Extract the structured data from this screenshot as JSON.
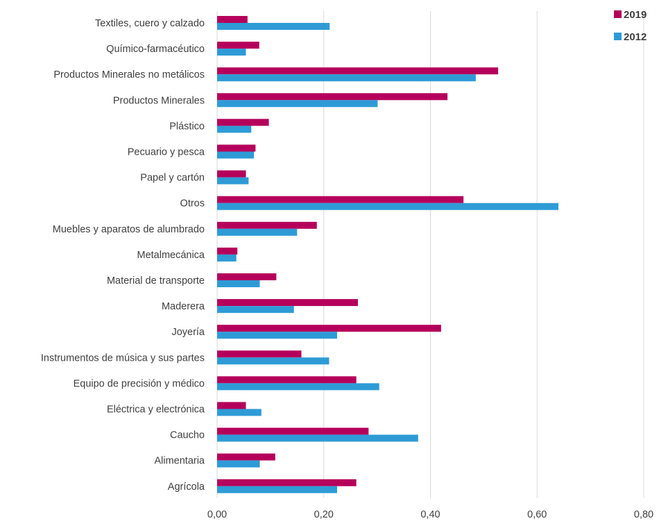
{
  "chart_data": {
    "type": "bar",
    "orientation": "horizontal",
    "title": "",
    "xlabel": "",
    "ylabel": "",
    "xlim": [
      0,
      0.8
    ],
    "x_ticks": [
      0,
      0.2,
      0.4,
      0.6,
      0.8
    ],
    "x_tick_labels": [
      "0,00",
      "0,20",
      "0,40",
      "0,60",
      "0,80"
    ],
    "grid": "vertical",
    "legend_position": "top-right",
    "categories": [
      "Textiles, cuero y calzado",
      "Químico-farmacéutico",
      "Productos Minerales no metálicos",
      "Productos Minerales",
      "Plástico",
      "Pecuario y pesca",
      "Papel y cartón",
      "Otros",
      "Muebles y aparatos de alumbrado",
      "Metalmecánica",
      "Material de transporte",
      "Maderera",
      "Joyería",
      "Instrumentos de música y sus partes",
      "Equipo de precisión y médico",
      "Eléctrica y electrónica",
      "Caucho",
      "Alimentaria",
      "Agrícola"
    ],
    "series": [
      {
        "name": "2019",
        "color": "#b5005b",
        "values": [
          0.057,
          0.079,
          0.527,
          0.432,
          0.097,
          0.072,
          0.054,
          0.462,
          0.187,
          0.038,
          0.111,
          0.264,
          0.42,
          0.158,
          0.261,
          0.054,
          0.284,
          0.109,
          0.261
        ]
      },
      {
        "name": "2012",
        "color": "#2e9bd6",
        "values": [
          0.211,
          0.054,
          0.485,
          0.301,
          0.064,
          0.069,
          0.059,
          0.64,
          0.15,
          0.036,
          0.08,
          0.144,
          0.225,
          0.21,
          0.304,
          0.083,
          0.377,
          0.08,
          0.225
        ]
      }
    ]
  }
}
